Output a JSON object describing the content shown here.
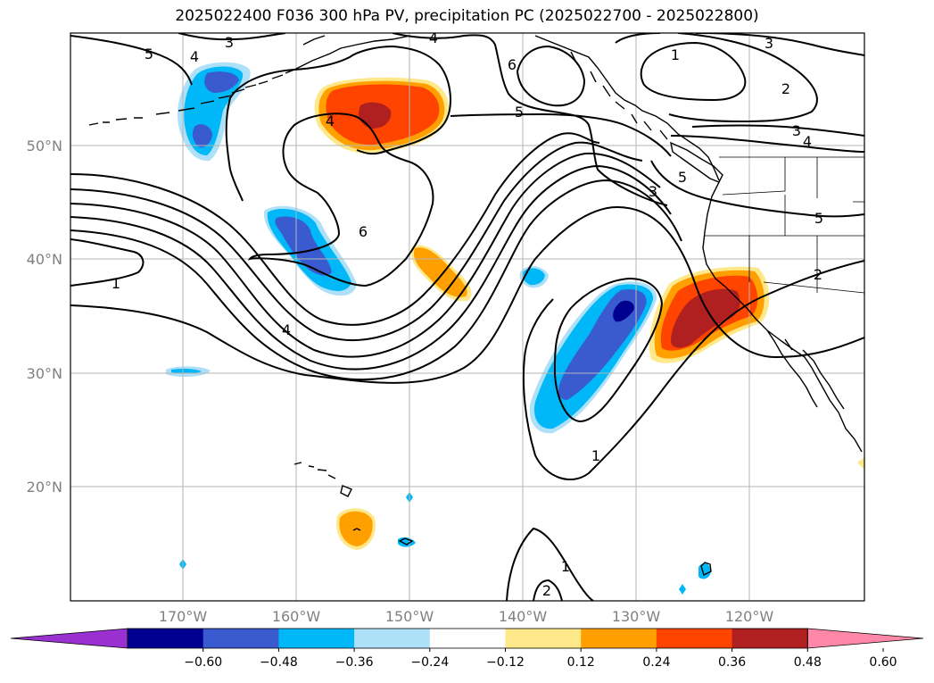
{
  "title": "2025022400 F036 300 hPa PV, precipitation PC (2025022700 - 2025022800)",
  "lat_labels": [
    "50°N",
    "40°N",
    "30°N",
    "20°N"
  ],
  "lon_labels": [
    "170°W",
    "160°W",
    "150°W",
    "140°W",
    "130°W",
    "120°W"
  ],
  "colorbar": {
    "tick_labels": [
      "−0.60",
      "−0.48",
      "−0.36",
      "−0.24",
      "−0.12",
      "0.12",
      "0.24",
      "0.36",
      "0.48",
      "0.60"
    ],
    "colors": [
      "#9b30d0",
      "#000090",
      "#3a5bd0",
      "#00b8f8",
      "#aee0f8",
      "#ffffff",
      "#ffe88a",
      "#ffa000",
      "#ff4400",
      "#b02020",
      "#ff88a8"
    ]
  },
  "contour_labels": [
    "3",
    "4",
    "5",
    "4",
    "3",
    "6",
    "5",
    "4",
    "1",
    "2",
    "3",
    "4",
    "5",
    "6",
    "5",
    "1",
    "4",
    "2",
    "3",
    "1",
    "1",
    "2"
  ],
  "colors": {
    "contour": "#000000",
    "grid": "#b4b4b4",
    "coast": "#000000"
  }
}
